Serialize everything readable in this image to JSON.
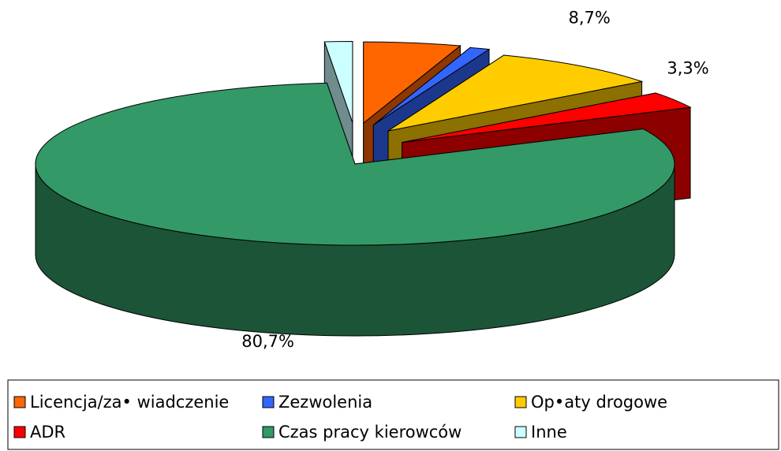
{
  "chart_data": {
    "type": "pie3d",
    "categories": [
      "Licencja/za• wiadczenie",
      "Zezwolenia",
      "Op•aty drogowe",
      "ADR",
      "Czas pracy kierowców",
      "Inne"
    ],
    "values": [
      4.9,
      1.0,
      8.7,
      3.3,
      80.7,
      1.4
    ],
    "value_labels": [
      "4,9%",
      "1,0%",
      "8,7%",
      "3,3%",
      "80,7%",
      "1,4%"
    ],
    "colors": [
      "#ff6600",
      "#3366ff",
      "#ffcc00",
      "#ff0000",
      "#339966",
      "#ccffff"
    ],
    "legend": "bottom"
  }
}
